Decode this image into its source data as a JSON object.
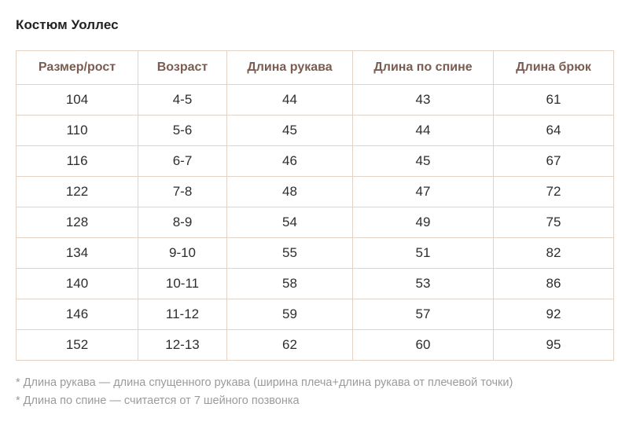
{
  "page": {
    "title": "Костюм Уоллес"
  },
  "table": {
    "columns": [
      "Размер/рост",
      "Возраст",
      "Длина рукава",
      "Длина по спине",
      "Длина брюк"
    ],
    "rows": [
      [
        "104",
        "4-5",
        "44",
        "43",
        "61"
      ],
      [
        "110",
        "5-6",
        "45",
        "44",
        "64"
      ],
      [
        "116",
        "6-7",
        "46",
        "45",
        "67"
      ],
      [
        "122",
        "7-8",
        "48",
        "47",
        "72"
      ],
      [
        "128",
        "8-9",
        "54",
        "49",
        "75"
      ],
      [
        "134",
        "9-10",
        "55",
        "51",
        "82"
      ],
      [
        "140",
        "10-11",
        "58",
        "53",
        "86"
      ],
      [
        "146",
        "11-12",
        "59",
        "57",
        "92"
      ],
      [
        "152",
        "12-13",
        "62",
        "60",
        "95"
      ]
    ]
  },
  "footnotes": [
    "* Длина рукава — длина спущенного рукава (ширина плеча+длина рукава от плечевой точки)",
    "* Длина по спине — считается от 7 шейного позвонка"
  ],
  "colors": {
    "title_text": "#222222",
    "header_text": "#7a5c50",
    "body_text": "#2e2e2e",
    "border": "#e3d3c7",
    "footnote_text": "#9b9b9b"
  }
}
